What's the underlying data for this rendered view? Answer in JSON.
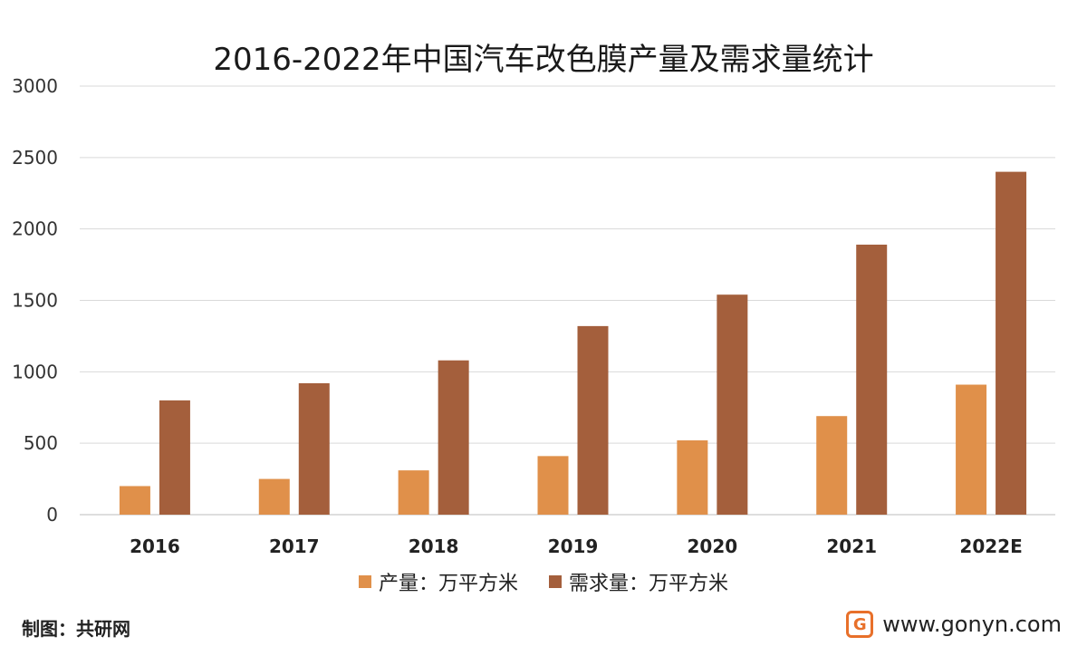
{
  "chart_data": {
    "type": "bar",
    "title": "2016-2022年中国汽车改色膜产量及需求量统计",
    "categories": [
      "2016",
      "2017",
      "2018",
      "2019",
      "2020",
      "2021",
      "2022E"
    ],
    "series": [
      {
        "name": "产量：万平方米",
        "color": "#e0904a",
        "values": [
          200,
          250,
          310,
          410,
          520,
          690,
          910
        ]
      },
      {
        "name": "需求量：万平方米",
        "color": "#a45f3c",
        "values": [
          800,
          920,
          1080,
          1320,
          1540,
          1890,
          2400
        ]
      }
    ],
    "ylim": [
      0,
      3000
    ],
    "yticks": [
      0,
      500,
      1000,
      1500,
      2000,
      2500,
      3000
    ],
    "grid": true,
    "legend_position": "bottom"
  },
  "footer": {
    "source_label": "制图：共研网",
    "logo_glyph": "G",
    "website": "www.gonyn.com"
  }
}
